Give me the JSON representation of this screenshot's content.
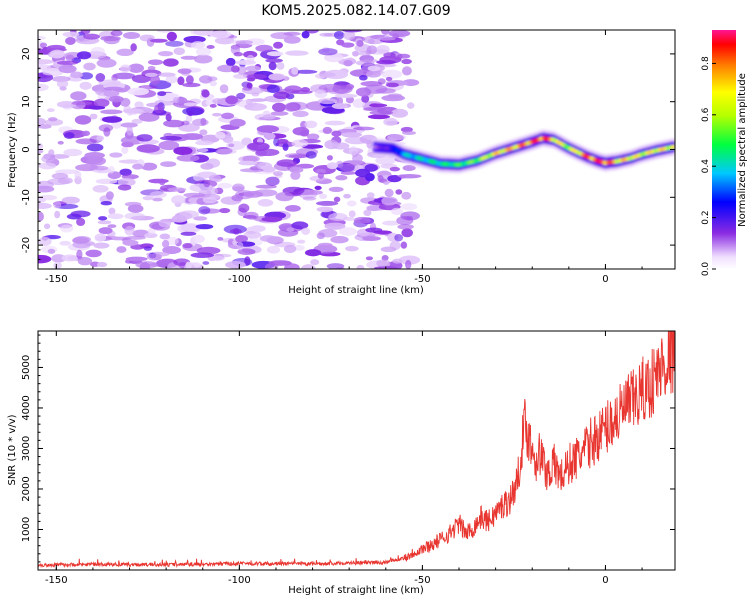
{
  "chart_data": [
    {
      "type": "heatmap",
      "title": "KOM5.2025.082.14.07.G09",
      "xlabel": "Height of straight line (km)",
      "ylabel": "Frequency (Hz)",
      "xlim": [
        -155,
        19
      ],
      "ylim": [
        -25,
        25
      ],
      "xticks": [
        -150,
        -100,
        -50,
        0
      ],
      "yticks": [
        -20,
        -10,
        0,
        10,
        20
      ],
      "colorbar": {
        "label": "Normalized spectral amplitude",
        "range": [
          0,
          0.93
        ],
        "ticks": [
          0.0,
          0.2,
          0.4,
          0.6,
          0.8
        ]
      },
      "noise_region_x": [
        -155,
        -53
      ],
      "signal_track": {
        "x": [
          -63,
          -58,
          -55,
          -50,
          -45,
          -40,
          -35,
          -30,
          -25,
          -20,
          -17,
          -14,
          -10,
          -5,
          -2,
          0,
          3,
          7,
          10,
          14,
          19
        ],
        "frequency": [
          0.5,
          0.2,
          -1.0,
          -2.0,
          -3.0,
          -3.2,
          -2.3,
          -0.8,
          0.4,
          1.6,
          2.4,
          2.0,
          0.3,
          -1.5,
          -2.4,
          -2.8,
          -2.5,
          -1.8,
          -1.0,
          -0.2,
          0.6
        ],
        "amplitude": [
          0.12,
          0.22,
          0.38,
          0.42,
          0.45,
          0.5,
          0.55,
          0.7,
          0.75,
          0.82,
          0.88,
          0.72,
          0.6,
          0.82,
          0.85,
          0.88,
          0.72,
          0.7,
          0.65,
          0.7,
          0.68
        ]
      }
    },
    {
      "type": "line",
      "xlabel": "Height of straight line (km)",
      "ylabel": "SNR (10 * v/v)",
      "xlim": [
        -155,
        19
      ],
      "ylim": [
        0,
        5900
      ],
      "xticks": [
        -150,
        -100,
        -50,
        0
      ],
      "yticks": [
        1000,
        2000,
        3000,
        4000,
        5000
      ],
      "series": [
        {
          "name": "SNR",
          "x": [
            -155,
            -140,
            -120,
            -100,
            -80,
            -65,
            -60,
            -55,
            -52,
            -48,
            -45,
            -42,
            -40,
            -38,
            -36,
            -34,
            -32,
            -30,
            -28,
            -26,
            -24,
            -23,
            -22,
            -21,
            -20,
            -19,
            -18,
            -16,
            -14,
            -12,
            -10,
            -8,
            -6,
            -4,
            -2,
            0,
            2,
            4,
            6,
            8,
            10,
            12,
            14,
            16,
            18,
            19
          ],
          "values": [
            120,
            140,
            130,
            160,
            150,
            180,
            190,
            300,
            450,
            600,
            750,
            950,
            1150,
            900,
            1050,
            1300,
            1200,
            1400,
            1600,
            1750,
            2200,
            3000,
            3600,
            3300,
            3000,
            2700,
            2900,
            2400,
            2600,
            2300,
            2600,
            2750,
            2900,
            3150,
            3300,
            3500,
            3700,
            3850,
            4050,
            4200,
            4400,
            4550,
            4800,
            5100,
            5300,
            5450
          ],
          "color": "#e8352f"
        }
      ]
    }
  ]
}
